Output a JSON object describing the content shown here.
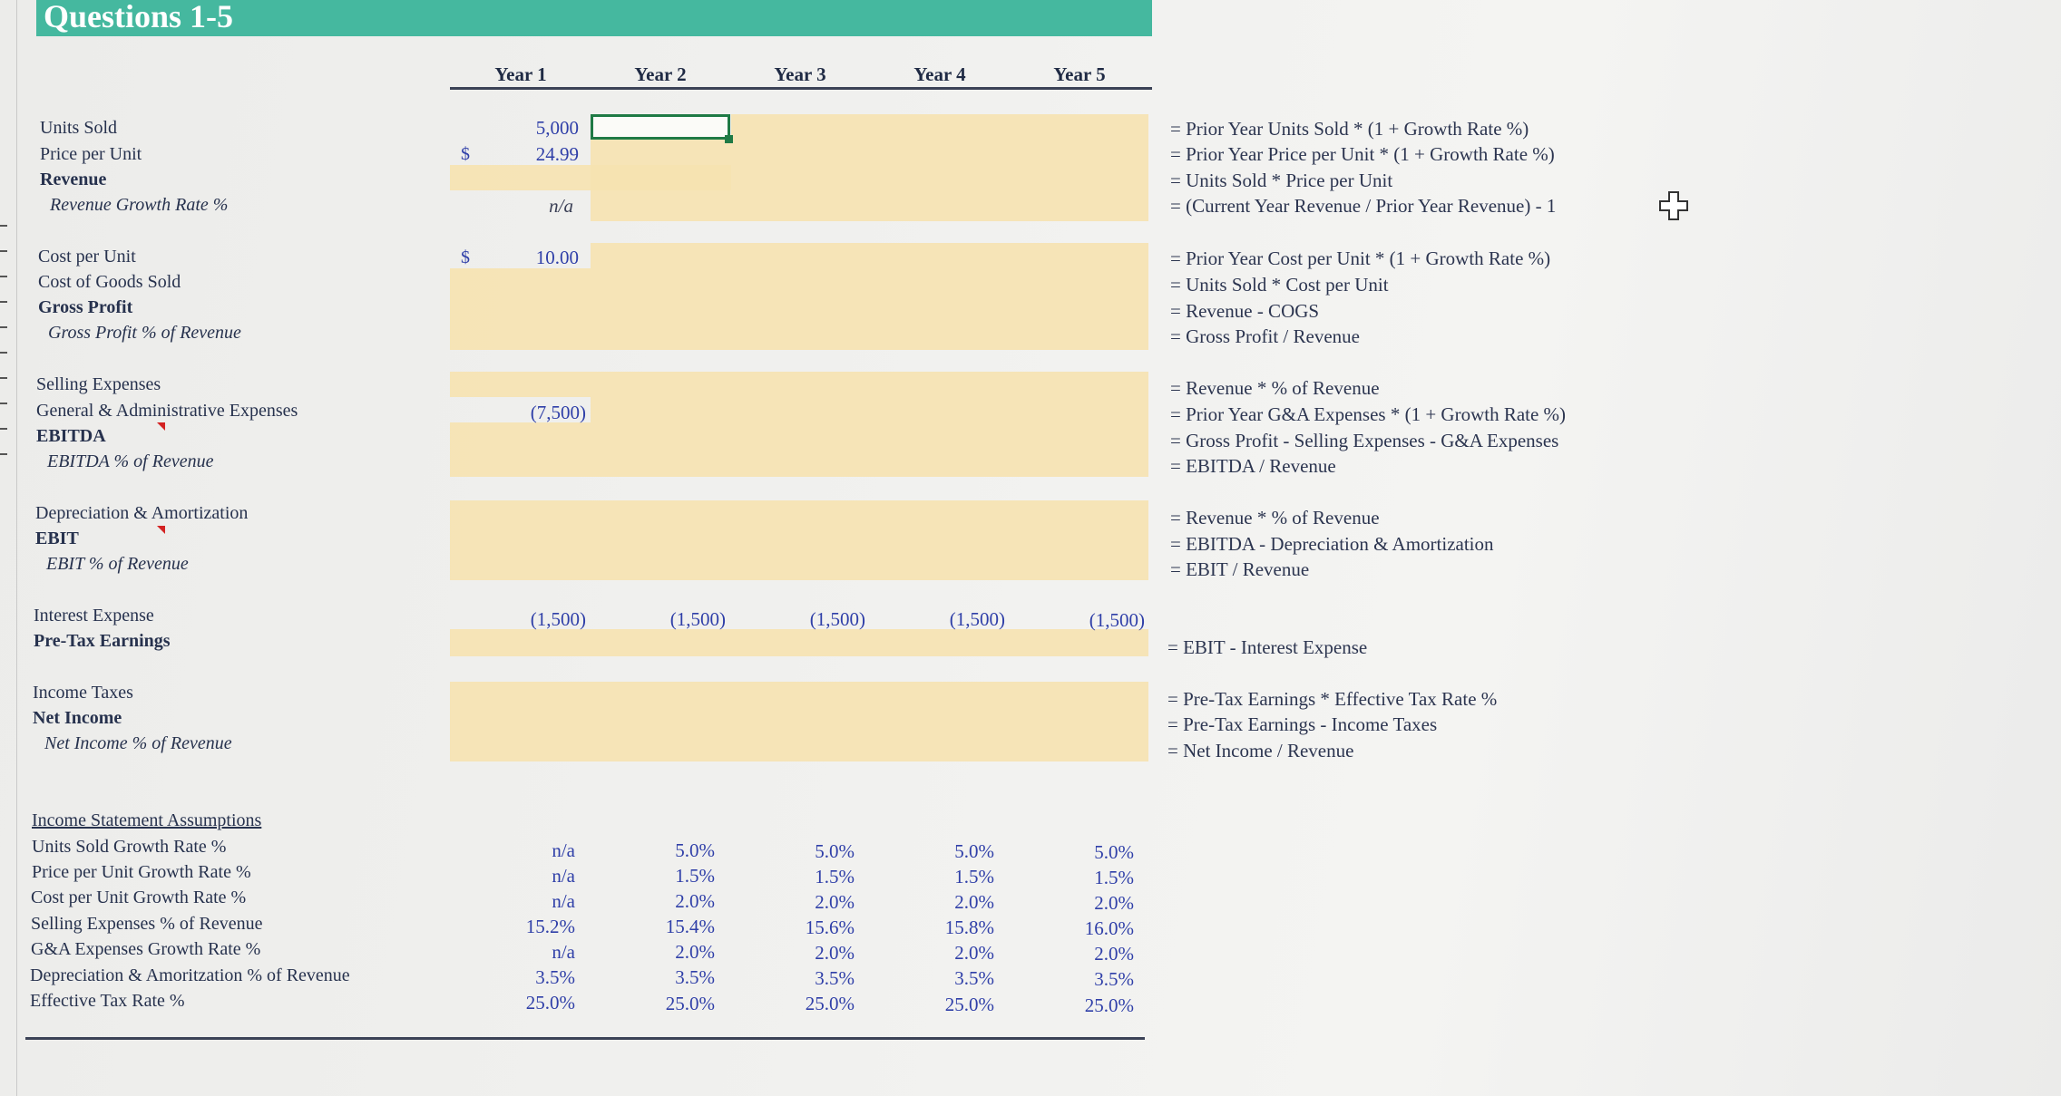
{
  "title": "Questions 1-5",
  "years": [
    "Year 1",
    "Year 2",
    "Year 3",
    "Year 4",
    "Year 5"
  ],
  "labels": {
    "units_sold": "Units Sold",
    "price_per_unit": "Price per Unit",
    "revenue": "Revenue",
    "revenue_growth": "Revenue Growth Rate %",
    "cost_per_unit": "Cost per Unit",
    "cogs": "Cost of Goods Sold",
    "gross_profit": "Gross Profit",
    "gross_profit_pct": "Gross Profit % of Revenue",
    "selling_expenses": "Selling Expenses",
    "ga_expenses": "General & Administrative Expenses",
    "ebitda": "EBITDA",
    "ebitda_pct": "EBITDA % of Revenue",
    "da": "Depreciation & Amortization",
    "ebit": "EBIT",
    "ebit_pct": "EBIT % of Revenue",
    "interest_expense": "Interest Expense",
    "pretax_earnings": "Pre-Tax Earnings",
    "income_taxes": "Income Taxes",
    "net_income": "Net Income",
    "net_income_pct": "Net Income % of Revenue"
  },
  "values": {
    "currency_symbol": "$",
    "units_sold_y1": "5,000",
    "price_y1": "24.99",
    "revenue_growth_y1": "n/a",
    "cost_per_unit_y1": "10.00",
    "ga_y1": "(7,500)",
    "interest": [
      "(1,500)",
      "(1,500)",
      "(1,500)",
      "(1,500)",
      "(1,500)"
    ]
  },
  "formulas": {
    "units_sold": "= Prior Year Units Sold * (1 + Growth Rate %)",
    "price_per_unit": "= Prior Year Price per Unit * (1 + Growth Rate %)",
    "revenue": "= Units Sold * Price per Unit",
    "revenue_growth": "= (Current Year Revenue / Prior Year Revenue) - 1",
    "cost_per_unit": "= Prior Year Cost per Unit * (1 + Growth Rate %)",
    "cogs": "= Units Sold * Cost per Unit",
    "gross_profit": "= Revenue - COGS",
    "gross_profit_pct": "= Gross Profit / Revenue",
    "selling_expenses": "= Revenue * % of Revenue",
    "ga_expenses": "= Prior Year G&A Expenses * (1 + Growth Rate %)",
    "ebitda": "= Gross Profit - Selling Expenses - G&A Expenses",
    "ebitda_pct": "= EBITDA / Revenue",
    "da": "= Revenue * % of Revenue",
    "ebit": "= EBITDA - Depreciation & Amortization",
    "ebit_pct": "= EBIT / Revenue",
    "pretax_earnings": "= EBIT - Interest Expense",
    "income_taxes": "= Pre-Tax Earnings * Effective Tax Rate %",
    "net_income": "= Pre-Tax Earnings - Income Taxes",
    "net_income_pct": "= Net Income / Revenue"
  },
  "assumptions": {
    "heading": "Income Statement Assumptions",
    "rows": [
      {
        "label": "Units Sold Growth Rate %",
        "values": [
          "n/a",
          "5.0%",
          "5.0%",
          "5.0%",
          "5.0%"
        ]
      },
      {
        "label": "Price per Unit Growth Rate %",
        "values": [
          "n/a",
          "1.5%",
          "1.5%",
          "1.5%",
          "1.5%"
        ]
      },
      {
        "label": "Cost per Unit Growth Rate %",
        "values": [
          "n/a",
          "2.0%",
          "2.0%",
          "2.0%",
          "2.0%"
        ]
      },
      {
        "label": "Selling Expenses % of Revenue",
        "values": [
          "15.2%",
          "15.4%",
          "15.6%",
          "15.8%",
          "16.0%"
        ]
      },
      {
        "label": "G&A Expenses Growth Rate %",
        "values": [
          "n/a",
          "2.0%",
          "2.0%",
          "2.0%",
          "2.0%"
        ]
      },
      {
        "label": "Depreciation & Amoritzation % of Revenue",
        "values": [
          "3.5%",
          "3.5%",
          "3.5%",
          "3.5%",
          "3.5%"
        ]
      },
      {
        "label": "Effective Tax Rate %",
        "values": [
          "25.0%",
          "25.0%",
          "25.0%",
          "25.0%",
          "25.0%"
        ]
      }
    ]
  },
  "cursor_icon": "plus-cross-cursor-icon"
}
